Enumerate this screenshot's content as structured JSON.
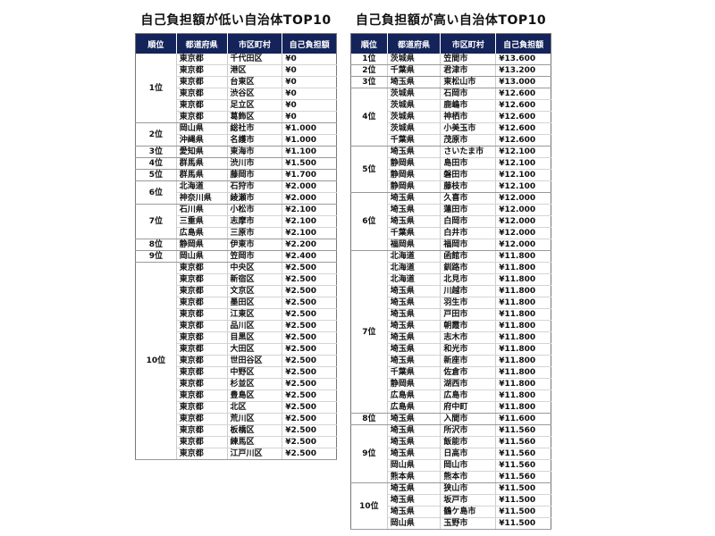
{
  "headers": [
    "順位",
    "都道府県",
    "市区町村",
    "自己負担額"
  ],
  "low": {
    "title": "自己負担額が低い自治体TOP10",
    "groups": [
      {
        "rank": "1位",
        "rows": [
          [
            "東京都",
            "千代田区",
            "¥0"
          ],
          [
            "東京都",
            "港区",
            "¥0"
          ],
          [
            "東京都",
            "台東区",
            "¥0"
          ],
          [
            "東京都",
            "渋谷区",
            "¥0"
          ],
          [
            "東京都",
            "足立区",
            "¥0"
          ],
          [
            "東京都",
            "葛飾区",
            "¥0"
          ]
        ]
      },
      {
        "rank": "2位",
        "rows": [
          [
            "岡山県",
            "総社市",
            "¥1.000"
          ],
          [
            "沖縄県",
            "名護市",
            "¥1.000"
          ]
        ]
      },
      {
        "rank": "3位",
        "rows": [
          [
            "愛知県",
            "東海市",
            "¥1.100"
          ]
        ]
      },
      {
        "rank": "4位",
        "rows": [
          [
            "群馬県",
            "渋川市",
            "¥1.500"
          ]
        ]
      },
      {
        "rank": "5位",
        "rows": [
          [
            "群馬県",
            "藤岡市",
            "¥1.700"
          ]
        ]
      },
      {
        "rank": "6位",
        "rows": [
          [
            "北海道",
            "石狩市",
            "¥2.000"
          ],
          [
            "神奈川県",
            "綾瀬市",
            "¥2.000"
          ]
        ]
      },
      {
        "rank": "7位",
        "rows": [
          [
            "石川県",
            "小松市",
            "¥2.100"
          ],
          [
            "三重県",
            "志摩市",
            "¥2.100"
          ],
          [
            "広島県",
            "三原市",
            "¥2.100"
          ]
        ]
      },
      {
        "rank": "8位",
        "rows": [
          [
            "静岡県",
            "伊東市",
            "¥2.200"
          ]
        ]
      },
      {
        "rank": "9位",
        "rows": [
          [
            "岡山県",
            "笠岡市",
            "¥2.400"
          ]
        ]
      },
      {
        "rank": "10位",
        "rows": [
          [
            "東京都",
            "中央区",
            "¥2.500"
          ],
          [
            "東京都",
            "新宿区",
            "¥2.500"
          ],
          [
            "東京都",
            "文京区",
            "¥2.500"
          ],
          [
            "東京都",
            "墨田区",
            "¥2.500"
          ],
          [
            "東京都",
            "江東区",
            "¥2.500"
          ],
          [
            "東京都",
            "品川区",
            "¥2.500"
          ],
          [
            "東京都",
            "目黒区",
            "¥2.500"
          ],
          [
            "東京都",
            "大田区",
            "¥2.500"
          ],
          [
            "東京都",
            "世田谷区",
            "¥2.500"
          ],
          [
            "東京都",
            "中野区",
            "¥2.500"
          ],
          [
            "東京都",
            "杉並区",
            "¥2.500"
          ],
          [
            "東京都",
            "豊島区",
            "¥2.500"
          ],
          [
            "東京都",
            "北区",
            "¥2.500"
          ],
          [
            "東京都",
            "荒川区",
            "¥2.500"
          ],
          [
            "東京都",
            "板橋区",
            "¥2.500"
          ],
          [
            "東京都",
            "練馬区",
            "¥2.500"
          ],
          [
            "東京都",
            "江戸川区",
            "¥2.500"
          ]
        ]
      }
    ]
  },
  "high": {
    "title": "自己負担額が高い自治体TOP10",
    "groups": [
      {
        "rank": "1位",
        "rows": [
          [
            "茨城県",
            "笠間市",
            "¥13.600"
          ]
        ]
      },
      {
        "rank": "2位",
        "rows": [
          [
            "千葉県",
            "君津市",
            "¥13.200"
          ]
        ]
      },
      {
        "rank": "3位",
        "rows": [
          [
            "埼玉県",
            "東松山市",
            "¥13.000"
          ]
        ]
      },
      {
        "rank": "4位",
        "rows": [
          [
            "茨城県",
            "石岡市",
            "¥12.600"
          ],
          [
            "茨城県",
            "鹿嶋市",
            "¥12.600"
          ],
          [
            "茨城県",
            "神栖市",
            "¥12.600"
          ],
          [
            "茨城県",
            "小美玉市",
            "¥12.600"
          ],
          [
            "千葉県",
            "茂原市",
            "¥12.600"
          ]
        ]
      },
      {
        "rank": "5位",
        "rows": [
          [
            "埼玉県",
            "さいたま市",
            "¥12.100"
          ],
          [
            "静岡県",
            "島田市",
            "¥12.100"
          ],
          [
            "静岡県",
            "磐田市",
            "¥12.100"
          ],
          [
            "静岡県",
            "藤枝市",
            "¥12.100"
          ]
        ]
      },
      {
        "rank": "6位",
        "rows": [
          [
            "埼玉県",
            "久喜市",
            "¥12.000"
          ],
          [
            "埼玉県",
            "蓮田市",
            "¥12.000"
          ],
          [
            "埼玉県",
            "白岡市",
            "¥12.000"
          ],
          [
            "千葉県",
            "白井市",
            "¥12.000"
          ],
          [
            "福岡県",
            "福岡市",
            "¥12.000"
          ]
        ]
      },
      {
        "rank": "7位",
        "rows": [
          [
            "北海道",
            "函館市",
            "¥11.800"
          ],
          [
            "北海道",
            "釧路市",
            "¥11.800"
          ],
          [
            "北海道",
            "北見市",
            "¥11.800"
          ],
          [
            "埼玉県",
            "川越市",
            "¥11.800"
          ],
          [
            "埼玉県",
            "羽生市",
            "¥11.800"
          ],
          [
            "埼玉県",
            "戸田市",
            "¥11.800"
          ],
          [
            "埼玉県",
            "朝霞市",
            "¥11.800"
          ],
          [
            "埼玉県",
            "志木市",
            "¥11.800"
          ],
          [
            "埼玉県",
            "和光市",
            "¥11.800"
          ],
          [
            "埼玉県",
            "新座市",
            "¥11.800"
          ],
          [
            "千葉県",
            "佐倉市",
            "¥11.800"
          ],
          [
            "静岡県",
            "湖西市",
            "¥11.800"
          ],
          [
            "広島県",
            "広島市",
            "¥11.800"
          ],
          [
            "広島県",
            "府中町",
            "¥11.800"
          ]
        ]
      },
      {
        "rank": "8位",
        "rows": [
          [
            "埼玉県",
            "入間市",
            "¥11.600"
          ]
        ]
      },
      {
        "rank": "9位",
        "rows": [
          [
            "埼玉県",
            "所沢市",
            "¥11.560"
          ],
          [
            "埼玉県",
            "飯能市",
            "¥11.560"
          ],
          [
            "埼玉県",
            "日高市",
            "¥11.560"
          ],
          [
            "岡山県",
            "岡山市",
            "¥11.560"
          ],
          [
            "熊本県",
            "熊本市",
            "¥11.560"
          ]
        ]
      },
      {
        "rank": "10位",
        "rows": [
          [
            "埼玉県",
            "狭山市",
            "¥11.500"
          ],
          [
            "埼玉県",
            "坂戸市",
            "¥11.500"
          ],
          [
            "埼玉県",
            "鶴ケ島市",
            "¥11.500"
          ],
          [
            "岡山県",
            "玉野市",
            "¥11.500"
          ]
        ]
      }
    ]
  }
}
